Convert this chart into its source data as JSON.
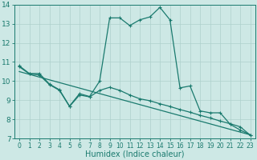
{
  "xlabel": "Humidex (Indice chaleur)",
  "bg_color": "#cde8e5",
  "line_color": "#1a7a6e",
  "grid_color": "#aed0cc",
  "xlim": [
    -0.5,
    23.5
  ],
  "ylim": [
    7,
    14
  ],
  "xticks": [
    0,
    1,
    2,
    3,
    4,
    5,
    6,
    7,
    8,
    9,
    10,
    11,
    12,
    13,
    14,
    15,
    16,
    17,
    18,
    19,
    20,
    21,
    22,
    23
  ],
  "yticks": [
    7,
    8,
    9,
    10,
    11,
    12,
    13,
    14
  ],
  "series1_x": [
    0,
    1,
    2,
    3,
    4,
    5,
    6,
    7,
    8,
    9,
    10,
    11,
    12,
    13,
    14,
    15,
    16,
    17,
    18,
    19,
    20,
    21,
    22,
    23
  ],
  "series1_y": [
    10.8,
    10.4,
    10.4,
    9.85,
    9.55,
    8.7,
    9.35,
    9.2,
    10.0,
    13.3,
    13.3,
    12.9,
    13.2,
    13.35,
    13.85,
    13.2,
    9.65,
    9.75,
    8.45,
    8.35,
    8.35,
    7.75,
    7.45,
    7.2
  ],
  "series2_x": [
    0,
    1,
    2,
    3,
    4,
    5,
    6,
    7,
    8,
    9,
    10,
    11,
    12,
    13,
    14,
    15,
    16,
    17,
    18,
    19,
    20,
    21,
    22,
    23
  ],
  "series2_y": [
    10.75,
    10.38,
    10.32,
    9.82,
    9.52,
    8.68,
    9.28,
    9.18,
    9.52,
    9.68,
    9.52,
    9.28,
    9.08,
    8.98,
    8.82,
    8.68,
    8.52,
    8.38,
    8.22,
    8.08,
    7.92,
    7.78,
    7.62,
    7.18
  ],
  "series3_x": [
    0,
    23
  ],
  "series3_y": [
    10.5,
    7.2
  ],
  "xlabel_fontsize": 7,
  "tick_fontsize": 5.5,
  "ytick_fontsize": 6.5
}
